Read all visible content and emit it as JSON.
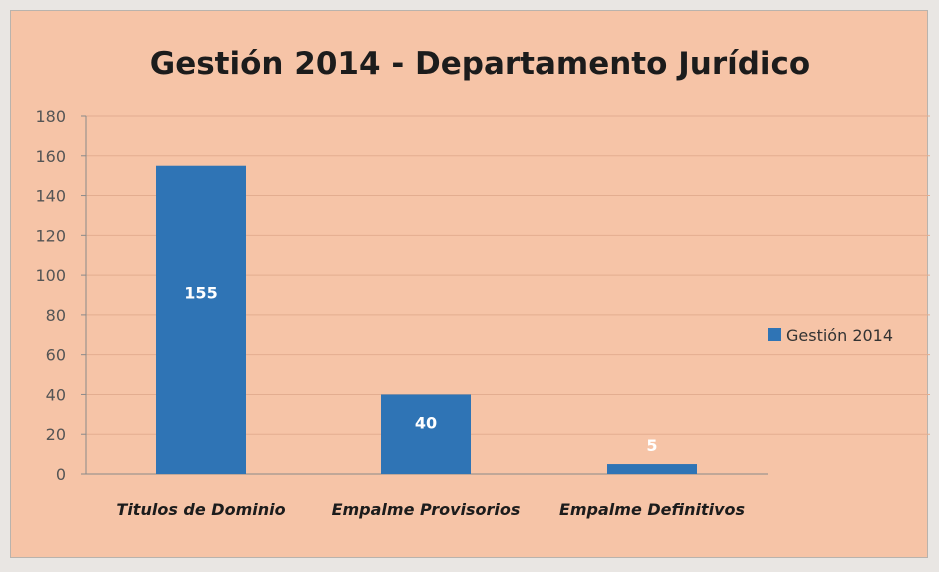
{
  "chart_data": {
    "type": "bar",
    "title": "Gestión 2014 - Departamento Jurídico",
    "categories": [
      "Titulos de Dominio",
      "Empalme Provisorios",
      "Empalme Definitivos"
    ],
    "series": [
      {
        "name": "Gestión 2014",
        "values": [
          155,
          40,
          5
        ],
        "color": "#2f74b5"
      }
    ],
    "data_labels": [
      "155",
      "40",
      "5"
    ],
    "ylim": [
      0,
      180
    ],
    "yticks": [
      0,
      20,
      40,
      60,
      80,
      100,
      120,
      140,
      160,
      180
    ],
    "grid": true,
    "legend_position": "right",
    "background_color": "#f6c4a7",
    "gridline_color": "#e3ad90"
  }
}
